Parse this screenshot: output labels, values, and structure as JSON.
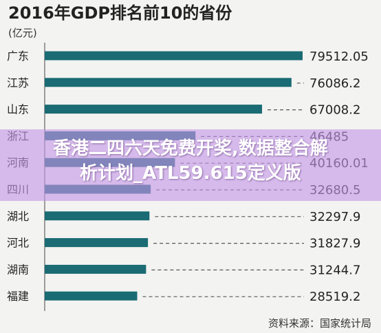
{
  "chart_data": {
    "type": "bar",
    "orientation": "horizontal",
    "title": "2016年GDP排名前10的省份",
    "unit_label": "(亿元)",
    "categories": [
      "广东",
      "江苏",
      "山东",
      "浙江",
      "河南",
      "四川",
      "湖北",
      "河北",
      "湖南",
      "福建"
    ],
    "values": [
      79512.05,
      76086.2,
      67008.2,
      46485,
      40160.01,
      32680.5,
      32297.9,
      31827.9,
      31244.7,
      28519.2
    ],
    "value_labels": [
      "79512.05",
      "76086.2",
      "67008.2",
      "46485",
      "40160.01",
      "32680.5",
      "32297.9",
      "31827.9",
      "31244.7",
      "28519.2"
    ],
    "xlim": [
      0,
      79512.05
    ],
    "grid": false,
    "source": "资料来源：国家统计局"
  },
  "colors": {
    "bar": "#1a6b73",
    "background": "#f3f3f1",
    "text": "#222222",
    "leader": "#555555",
    "overlay": "#c496e6"
  },
  "overlay": {
    "line1": "香港二四六天免费开奖,数据整合解",
    "line2": "析计划_ATL59.615定义版"
  }
}
